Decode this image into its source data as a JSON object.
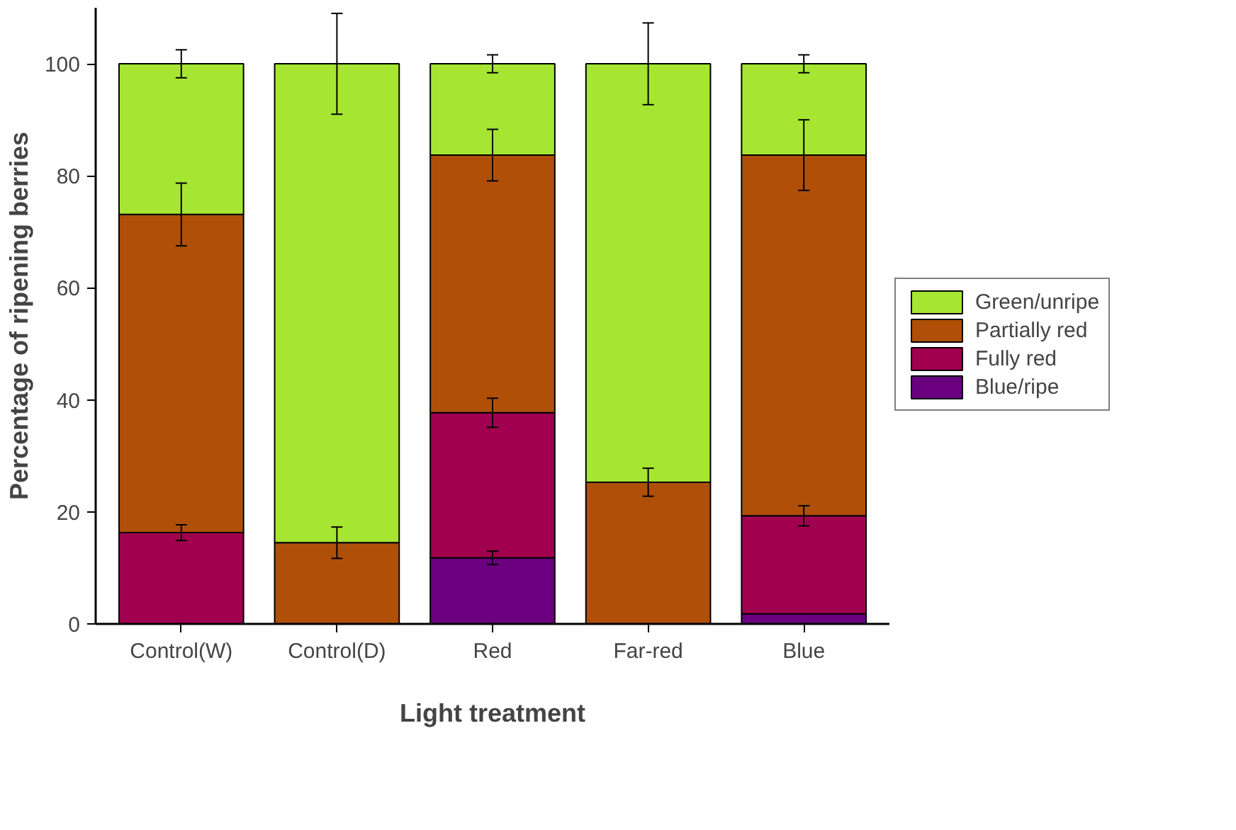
{
  "chart_data": {
    "type": "bar",
    "stacked": true,
    "xlabel": "Light treatment",
    "ylabel": "Percentage of ripening berries",
    "categories": [
      "Control(W)",
      "Control(D)",
      "Red",
      "Far-red",
      "Blue"
    ],
    "series": [
      {
        "name": "Blue/ripe",
        "color": "#6a0080",
        "values": [
          0,
          0,
          11.8,
          0,
          1.8
        ],
        "errors": [
          null,
          null,
          1.2,
          null,
          null
        ]
      },
      {
        "name": "Fully red",
        "color": "#a0004f",
        "values": [
          16.3,
          0,
          25.9,
          0,
          17.5
        ],
        "errors": [
          1.4,
          null,
          2.6,
          null,
          1.8
        ]
      },
      {
        "name": "Partially red",
        "color": "#b05008",
        "values": [
          56.8,
          14.5,
          46.0,
          25.3,
          64.4
        ],
        "errors": [
          5.6,
          2.8,
          4.6,
          2.5,
          6.3
        ]
      },
      {
        "name": "Green/unripe",
        "color": "#a6e632",
        "values": [
          26.9,
          85.5,
          16.3,
          74.7,
          16.3
        ],
        "errors": [
          2.5,
          9,
          1.6,
          7.3,
          1.6
        ]
      }
    ],
    "ylim": [
      0,
      110
    ],
    "yticks": [
      0,
      20,
      40,
      60,
      80,
      100
    ],
    "grid": false,
    "legend": "right"
  }
}
